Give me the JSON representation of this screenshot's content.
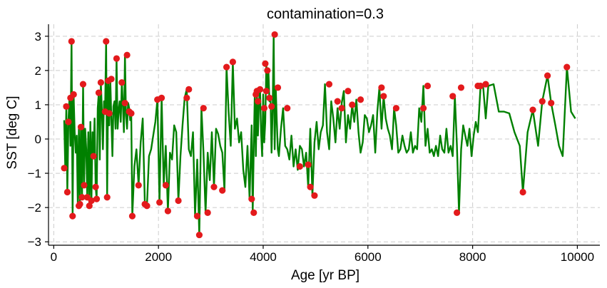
{
  "chart_data": {
    "type": "line",
    "title": "contamination=0.3",
    "xlabel": "Age [yr BP]",
    "ylabel": "SST [deg C]",
    "xlim": [
      -100,
      10430
    ],
    "ylim": [
      -3.1,
      3.35
    ],
    "xticks": [
      0,
      2000,
      4000,
      6000,
      8000,
      10000
    ],
    "yticks": [
      -3,
      -2,
      -1,
      0,
      1,
      2,
      3
    ],
    "grid": true,
    "colors": {
      "line": "#008000",
      "outlier": "#e31a1c",
      "grid": "#cccccc"
    },
    "series": [
      {
        "role": "signal",
        "x": [
          200,
          220,
          240,
          260,
          280,
          300,
          320,
          340,
          360,
          380,
          400,
          420,
          440,
          460,
          480,
          500,
          520,
          540,
          560,
          580,
          600,
          620,
          640,
          660,
          680,
          700,
          720,
          740,
          760,
          780,
          800,
          820,
          840,
          860,
          880,
          900,
          920,
          940,
          960,
          980,
          1000,
          1020,
          1040,
          1060,
          1080,
          1100,
          1120,
          1140,
          1160,
          1180,
          1200,
          1220,
          1240,
          1260,
          1280,
          1300,
          1320,
          1340,
          1360,
          1380,
          1400,
          1420,
          1440,
          1460,
          1480,
          1500,
          1540,
          1580,
          1620,
          1660,
          1700,
          1740,
          1780,
          1820,
          1860,
          1900,
          1940,
          1980,
          2020,
          2060,
          2100,
          2140,
          2180,
          2220,
          2260,
          2300,
          2340,
          2380,
          2420,
          2460,
          2500,
          2540,
          2580,
          2620,
          2660,
          2700,
          2740,
          2780,
          2820,
          2860,
          2900,
          2940,
          2980,
          3020,
          3060,
          3100,
          3140,
          3180,
          3220,
          3260,
          3300,
          3340,
          3380,
          3420,
          3460,
          3500,
          3540,
          3580,
          3620,
          3660,
          3700,
          3740,
          3780,
          3800,
          3820,
          3840,
          3860,
          3880,
          3900,
          3920,
          3940,
          3960,
          3980,
          4000,
          4020,
          4040,
          4060,
          4080,
          4100,
          4120,
          4140,
          4160,
          4180,
          4200,
          4220,
          4240,
          4260,
          4280,
          4300,
          4340,
          4380,
          4420,
          4460,
          4500,
          4540,
          4580,
          4620,
          4660,
          4700,
          4740,
          4780,
          4820,
          4860,
          4900,
          4940,
          4980,
          5020,
          5060,
          5100,
          5140,
          5180,
          5220,
          5260,
          5300,
          5340,
          5380,
          5420,
          5460,
          5500,
          5540,
          5580,
          5620,
          5660,
          5700,
          5740,
          5780,
          5820,
          5860,
          5900,
          5940,
          5980,
          6020,
          6060,
          6100,
          6140,
          6180,
          6220,
          6260,
          6300,
          6340,
          6380,
          6420,
          6460,
          6500,
          6540,
          6580,
          6620,
          6660,
          6700,
          6740,
          6780,
          6820,
          6860,
          6900,
          6940,
          6980,
          7020,
          7060,
          7100,
          7140,
          7180,
          7220,
          7260,
          7300,
          7340,
          7380,
          7420,
          7460,
          7500,
          7540,
          7580,
          7620,
          7660,
          7700,
          7740,
          7780,
          7820,
          7860,
          7900,
          7940,
          7980,
          8020,
          8060,
          8100,
          8150,
          8200,
          8250,
          8300,
          8400,
          8500,
          8600,
          8700,
          8800,
          8900,
          8960,
          9050,
          9150,
          9250,
          9330,
          9430,
          9500,
          9580,
          9650,
          9720,
          9800,
          9880,
          9960
        ],
        "y": [
          0.55,
          -0.85,
          0.95,
          -1.55,
          0.5,
          1.2,
          -0.2,
          2.85,
          -2.25,
          1.3,
          0.2,
          -0.4,
          0.1,
          -1.95,
          0.35,
          -1.9,
          0.4,
          -1.7,
          1.6,
          -1.35,
          0.3,
          -0.3,
          -1.7,
          0.2,
          -1.95,
          0.5,
          -1.8,
          0.2,
          -0.5,
          0.6,
          -1.4,
          -1.75,
          0.9,
          1.35,
          -0.6,
          1.65,
          0.8,
          -0.3,
          1.1,
          0.8,
          2.85,
          -1.7,
          1.7,
          0.4,
          1.75,
          0.6,
          -0.5,
          0.95,
          1.1,
          0.3,
          2.35,
          0.3,
          0.85,
          1.1,
          0.5,
          1.65,
          1.05,
          0.2,
          2.45,
          0.7,
          0.3,
          1.05,
          0.9,
          0.55,
          0.75,
          -2.25,
          -0.8,
          -0.3,
          -1.35,
          -0.1,
          0.6,
          -1.9,
          -1.95,
          -0.5,
          -0.3,
          0.1,
          0.5,
          1.15,
          -1.85,
          1.2,
          -1.35,
          -0.2,
          -2.1,
          -0.4,
          -0.6,
          0.4,
          0.2,
          -1.8,
          -0.5,
          0.4,
          1.2,
          1.45,
          -0.3,
          -0.5,
          0.2,
          -2.25,
          -0.6,
          -2.8,
          0.9,
          -0.4,
          -2.15,
          -0.4,
          -1.2,
          0.2,
          -1.4,
          0.3,
          0.15,
          -0.2,
          -0.4,
          -1.5,
          2.1,
          0.8,
          -0.2,
          2.25,
          0.3,
          0.6,
          -0.1,
          0.2,
          -0.9,
          -1.4,
          -0.2,
          -1.75,
          0.4,
          -2.15,
          -0.2,
          1.3,
          -0.5,
          1.4,
          0.1,
          1.1,
          1.45,
          0.2,
          -0.5,
          1.3,
          -0.1,
          0.5,
          2.2,
          1.4,
          2.0,
          1.1,
          1.2,
          -0.4,
          0.8,
          3.05,
          -0.3,
          1.5,
          0.5,
          -0.3,
          -0.5,
          0.3,
          0.9,
          -0.2,
          -0.3,
          -0.6,
          0.1,
          -0.8,
          -0.3,
          -0.9,
          -0.2,
          -0.3,
          -0.8,
          -0.4,
          -1.4,
          0.3,
          -1.65,
          -0.1,
          0.5,
          -0.3,
          0.2,
          0.4,
          1.6,
          0.2,
          -0.3,
          1.1,
          0.6,
          -0.1,
          0.9,
          0.3,
          1.05,
          1.4,
          -0.1,
          0.7,
          0.3,
          1.0,
          0.5,
          1.15,
          0.2,
          -0.4,
          -0.1,
          0.7,
          0.6,
          0.2,
          0.4,
          0.7,
          -0.4,
          0.8,
          1.5,
          0.3,
          1.25,
          0.6,
          0.3,
          0.1,
          -0.3,
          0.9,
          0.4,
          -0.4,
          -0.3,
          0.1,
          -0.2,
          -0.4,
          -0.3,
          0.2,
          -0.4,
          -0.2,
          -0.3,
          0.9,
          0.5,
          1.55,
          -0.2,
          0.3,
          -0.4,
          -0.3,
          -0.5,
          -0.2,
          -0.5,
          0.1,
          -0.3,
          -0.4,
          0.3,
          -0.4,
          -0.2,
          -0.5,
          1.25,
          -0.2,
          -2.15,
          -0.3,
          0.4,
          0.1,
          -0.2,
          0.3,
          -0.5,
          0.1,
          0.5,
          0.2,
          1.5,
          1.55,
          0.6,
          1.55,
          1.6,
          0.8,
          0.8,
          0.75,
          0.2,
          -0.2,
          -1.55,
          0.2,
          0.85,
          -0.2,
          1.1,
          1.85,
          1.05,
          0.4,
          -0.2,
          -0.5,
          2.1,
          0.8,
          0.6
        ]
      }
    ],
    "outliers": {
      "x": [
        200,
        240,
        260,
        280,
        320,
        340,
        360,
        380,
        480,
        500,
        520,
        540,
        560,
        580,
        640,
        680,
        720,
        760,
        800,
        820,
        860,
        900,
        980,
        1000,
        1020,
        1040,
        1060,
        1100,
        1200,
        1300,
        1360,
        1400,
        1440,
        1480,
        1500,
        1620,
        1740,
        1780,
        1980,
        2020,
        2060,
        2140,
        2180,
        2380,
        2540,
        2580,
        2740,
        2780,
        2860,
        2940,
        3060,
        3220,
        3300,
        3420,
        3780,
        3820,
        3860,
        3880,
        3900,
        3940,
        4020,
        4040,
        4060,
        4080,
        4120,
        4160,
        4220,
        4280,
        4460,
        4700,
        4860,
        4900,
        4980,
        5260,
        5420,
        5500,
        5620,
        5700,
        5860,
        6260,
        6300,
        6540,
        7060,
        7140,
        7620,
        7700,
        7780,
        8100,
        8150,
        8250,
        8960,
        9150,
        9330,
        9430,
        9500,
        9800
      ],
      "y": [
        -0.85,
        0.95,
        -1.55,
        0.5,
        1.2,
        2.85,
        -2.25,
        1.3,
        -1.95,
        -1.9,
        0.35,
        -1.7,
        1.6,
        -1.35,
        -1.7,
        -1.95,
        -1.8,
        -0.5,
        -1.4,
        -1.75,
        1.35,
        1.65,
        0.8,
        2.85,
        -1.7,
        1.7,
        0.75,
        1.75,
        2.35,
        1.65,
        1.05,
        2.45,
        0.8,
        0.75,
        -2.25,
        -1.35,
        -1.9,
        -1.95,
        1.15,
        -1.85,
        1.2,
        -1.35,
        -2.1,
        -1.8,
        1.2,
        1.45,
        -2.25,
        -2.8,
        0.9,
        -2.15,
        -1.4,
        -1.5,
        2.1,
        2.25,
        -1.75,
        -2.15,
        1.3,
        1.4,
        1.1,
        1.45,
        0.9,
        2.2,
        1.4,
        2.0,
        1.2,
        0.95,
        3.05,
        1.5,
        0.9,
        -0.8,
        -0.75,
        -1.4,
        -1.65,
        1.6,
        1.1,
        0.9,
        1.4,
        1.0,
        1.15,
        1.5,
        1.25,
        0.9,
        0.9,
        1.55,
        1.25,
        -2.15,
        1.5,
        1.55,
        1.55,
        1.6,
        -1.55,
        0.85,
        1.1,
        1.85,
        1.05,
        2.1
      ]
    }
  }
}
